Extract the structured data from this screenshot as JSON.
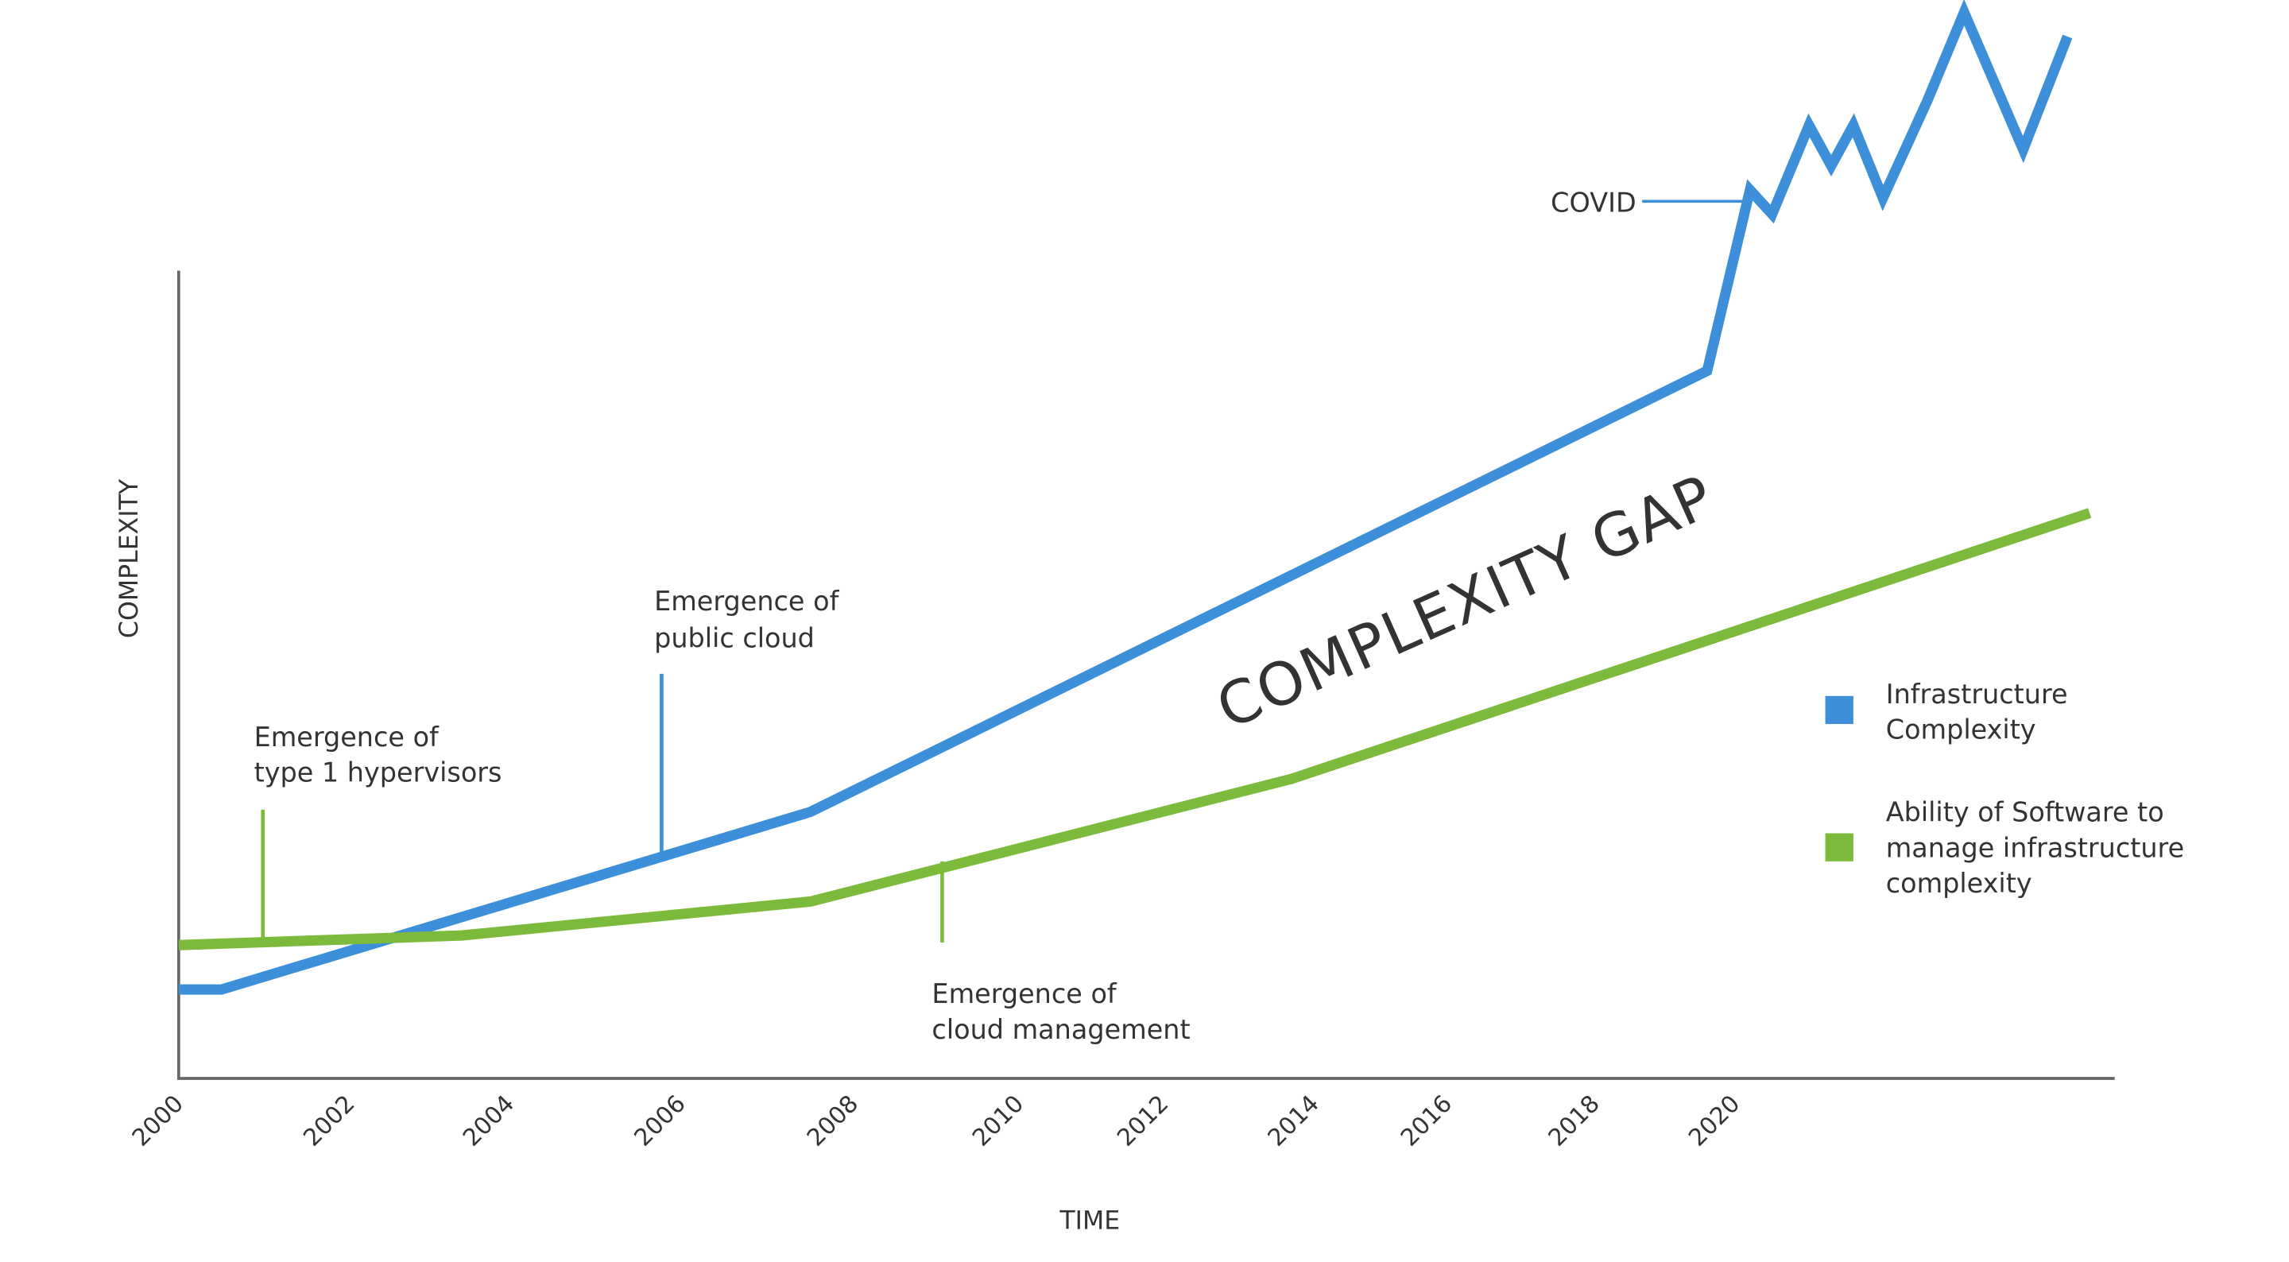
{
  "chart_data": {
    "type": "line",
    "title": "",
    "xlabel": "TIME",
    "ylabel": "COMPLEXITY",
    "x_ticks": [
      "2000",
      "2002",
      "2004",
      "2006",
      "2008",
      "2010",
      "2012",
      "2014",
      "2016",
      "2018",
      "2020"
    ],
    "y_ticks": [],
    "grid": false,
    "legend_position": "right",
    "series": [
      {
        "name": "Infrastructure Complexity",
        "color": "#3d8fd9",
        "points": [
          [
            2000.0,
            11
          ],
          [
            2000.5,
            11
          ],
          [
            2007.5,
            33
          ],
          [
            2019.6,
            87.6
          ],
          [
            2020.2,
            110
          ],
          [
            2020.5,
            107
          ],
          [
            2021.0,
            118
          ],
          [
            2021.3,
            113
          ],
          [
            2021.6,
            118
          ],
          [
            2022.0,
            109
          ],
          [
            2022.6,
            121
          ],
          [
            2023.1,
            132
          ],
          [
            2023.9,
            115
          ],
          [
            2024.5,
            129
          ]
        ]
      },
      {
        "name": "Ability of Software to manage infrastructure complexity",
        "color": "#7cba3c",
        "points": [
          [
            2000.0,
            16.5
          ],
          [
            2003.4,
            17.7
          ],
          [
            2007.5,
            21.9
          ],
          [
            2013.7,
            37.1
          ],
          [
            2024.8,
            70
          ]
        ]
      }
    ],
    "legend": [
      {
        "lines": [
          "Infrastructure",
          "Complexity"
        ],
        "color": "#3d8fd9"
      },
      {
        "lines": [
          "Ability of Software to",
          "manage infrastructure",
          "complexity"
        ],
        "color": "#7cba3c"
      }
    ],
    "annotations": [
      {
        "lines": [
          "Emergence of",
          "type 1 hypervisors"
        ],
        "year": 2001,
        "color": "#7cba3c"
      },
      {
        "lines": [
          "Emergence of",
          "public cloud"
        ],
        "year": 2006,
        "color": "#3d8fd9"
      },
      {
        "lines": [
          "Emergence of",
          "cloud management"
        ],
        "year": 2009,
        "color": "#7cba3c"
      },
      {
        "lines": [
          "COVID"
        ],
        "year": 2020.2,
        "color": "#3d8fd9"
      }
    ],
    "gap_label": "COMPLEXITY GAP"
  }
}
